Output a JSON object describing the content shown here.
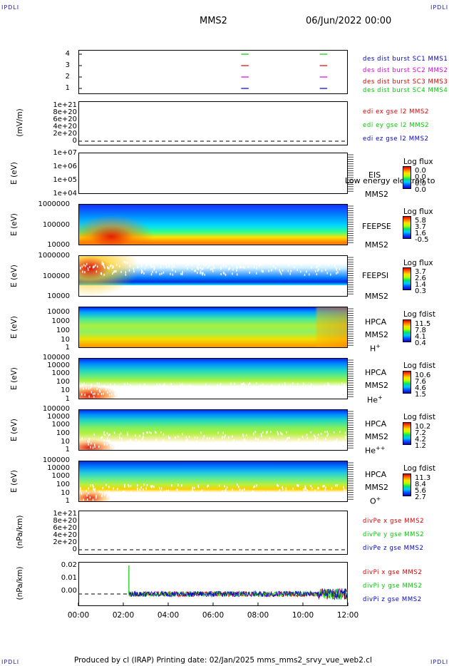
{
  "corners": {
    "tl": "IPDLI",
    "tr": "IPDLI",
    "bl": "IPDLI",
    "br": "IPDLI"
  },
  "header": {
    "spacecraft": "MMS2",
    "date": "06/Jun/2022 00:00"
  },
  "footer": {
    "text": "Produced by cl (IRAP)   Printing date: 02/Jan/2025   mms_mms2_srvy_vue_web2.cl"
  },
  "colors": {
    "red": "#dd0000",
    "green": "#00cc00",
    "blue": "#0000cc",
    "magenta": "#dd00dd"
  },
  "chart_data": [
    {
      "type": "line",
      "id": "burst",
      "yticks": [
        "4",
        "3",
        "2",
        "1"
      ],
      "ylabel": "",
      "legend": [
        "des dist burst SC1 MMS1",
        "des dist burst SC2 MMS2",
        "des dist burst SC3 MMS3",
        "des dist burst SC4 MMS4"
      ],
      "legend_colors": [
        "#0000cc",
        "#dd00dd",
        "#dd0000",
        "#00cc00"
      ],
      "segments": [
        {
          "level": 4,
          "start": "07:15",
          "end": "07:35",
          "color": "#00cc00"
        },
        {
          "level": 4,
          "start": "10:45",
          "end": "11:05",
          "color": "#00cc00"
        },
        {
          "level": 3,
          "start": "07:15",
          "end": "07:35",
          "color": "#dd0000"
        },
        {
          "level": 3,
          "start": "10:45",
          "end": "11:05",
          "color": "#dd0000"
        },
        {
          "level": 2,
          "start": "07:15",
          "end": "07:35",
          "color": "#dd00dd"
        },
        {
          "level": 2,
          "start": "10:45",
          "end": "11:05",
          "color": "#dd00dd"
        },
        {
          "level": 1,
          "start": "07:15",
          "end": "07:35",
          "color": "#0000cc"
        },
        {
          "level": 1,
          "start": "10:45",
          "end": "11:05",
          "color": "#0000cc"
        }
      ]
    },
    {
      "type": "line",
      "id": "edi",
      "ylabel": "(mV/m)",
      "yticks": [
        "1e+21",
        "8e+20",
        "6e+20",
        "4e+20",
        "2e+20",
        "0"
      ],
      "legend": [
        "edi ex gse l2 MMS2",
        "edi ey gse l2 MMS2",
        "edi ez gse l2 MMS2"
      ],
      "legend_colors": [
        "#dd0000",
        "#00cc00",
        "#0000cc"
      ]
    },
    {
      "type": "heatmap",
      "id": "eis",
      "ylabel": "E (eV)",
      "yticks": [
        "1e+07",
        "1e+06",
        "1e+05",
        "1e+04"
      ],
      "instrument": "EIS",
      "overlay": "Low energy electron to",
      "sc": "MMS2",
      "cb_title": "Log flux",
      "cb_ticks": [
        "0.0",
        "0.0",
        "0.0",
        "0.0"
      ]
    },
    {
      "type": "heatmap",
      "id": "feepse",
      "ylabel": "E (eV)",
      "yticks": [
        "1000000",
        "100000",
        "10000"
      ],
      "instrument": "FEEPSE",
      "sc": "MMS2",
      "cb_title": "Log flux",
      "cb_ticks": [
        "5.8",
        "3.7",
        "1.6",
        "-0.5"
      ]
    },
    {
      "type": "heatmap",
      "id": "feepsi",
      "ylabel": "E (eV)",
      "yticks": [
        "1000000",
        "100000",
        "10000"
      ],
      "instrument": "FEEPSI",
      "sc": "MMS2",
      "cb_title": "Log flux",
      "cb_ticks": [
        "3.7",
        "2.6",
        "1.4",
        "0.3"
      ]
    },
    {
      "type": "heatmap",
      "id": "hpca_h",
      "ylabel": "E (eV)",
      "yticks": [
        "10000",
        "1000",
        "100",
        "10",
        "1"
      ],
      "instrument": "HPCA",
      "sc": "MMS2",
      "species": "H",
      "species_sup": "+",
      "cb_title": "Log fdist",
      "cb_ticks": [
        "11.5",
        "7.8",
        "4.1",
        "0.4"
      ]
    },
    {
      "type": "heatmap",
      "id": "hpca_he",
      "ylabel": "E (eV)",
      "yticks": [
        "100000",
        "10000",
        "1000",
        "100",
        "10",
        "1"
      ],
      "instrument": "HPCA",
      "sc": "MMS2",
      "species": "He",
      "species_sup": "+",
      "cb_title": "Log fdist",
      "cb_ticks": [
        "10.6",
        "7.6",
        "4.6",
        "1.5"
      ]
    },
    {
      "type": "heatmap",
      "id": "hpca_hepp",
      "ylabel": "E (eV)",
      "yticks": [
        "100000",
        "10000",
        "1000",
        "100",
        "10",
        "1"
      ],
      "instrument": "HPCA",
      "sc": "MMS2",
      "species": "He",
      "species_sup": "++",
      "cb_title": "Log fdist",
      "cb_ticks": [
        "10.2",
        "7.2",
        "4.2",
        "1.2"
      ]
    },
    {
      "type": "heatmap",
      "id": "hpca_o",
      "ylabel": "E (eV)",
      "yticks": [
        "100000",
        "10000",
        "1000",
        "100",
        "10",
        "1"
      ],
      "instrument": "HPCA",
      "sc": "MMS2",
      "species": "O",
      "species_sup": "+",
      "cb_title": "Log fdist",
      "cb_ticks": [
        "11.3",
        "8.4",
        "5.6",
        "2.7"
      ]
    },
    {
      "type": "line",
      "id": "divpe",
      "ylabel": "(nPa/km)",
      "yticks": [
        "1e+21",
        "8e+20",
        "6e+20",
        "4e+20",
        "2e+20",
        "0"
      ],
      "legend": [
        "divPe x gse MMS2",
        "divPe y gse MMS2",
        "divPe z gse MMS2"
      ],
      "legend_colors": [
        "#dd0000",
        "#00cc00",
        "#0000cc"
      ]
    },
    {
      "type": "line",
      "id": "divpi",
      "ylabel": "(nPa/km)",
      "yticks": [
        "0.02",
        "0.01",
        "0.00"
      ],
      "ylim": [
        -0.008,
        0.022
      ],
      "legend": [
        "divPi x gse MMS2",
        "divPi y gse MMS2",
        "divPi z gse MMS2"
      ],
      "legend_colors": [
        "#dd0000",
        "#00cc00",
        "#0000cc"
      ],
      "data_start": "02:15",
      "baseline": 0.0,
      "spike": {
        "time": "02:15",
        "value": 0.02,
        "color": "#00cc00"
      },
      "noise_amplitude": 0.002,
      "noise_amplitude_late": 0.004,
      "late_start": "10:40"
    }
  ],
  "xaxis": {
    "ticks": [
      "00:00",
      "02:00",
      "04:00",
      "06:00",
      "08:00",
      "10:00",
      "12:00"
    ],
    "range": [
      "00:00",
      "12:00"
    ]
  }
}
